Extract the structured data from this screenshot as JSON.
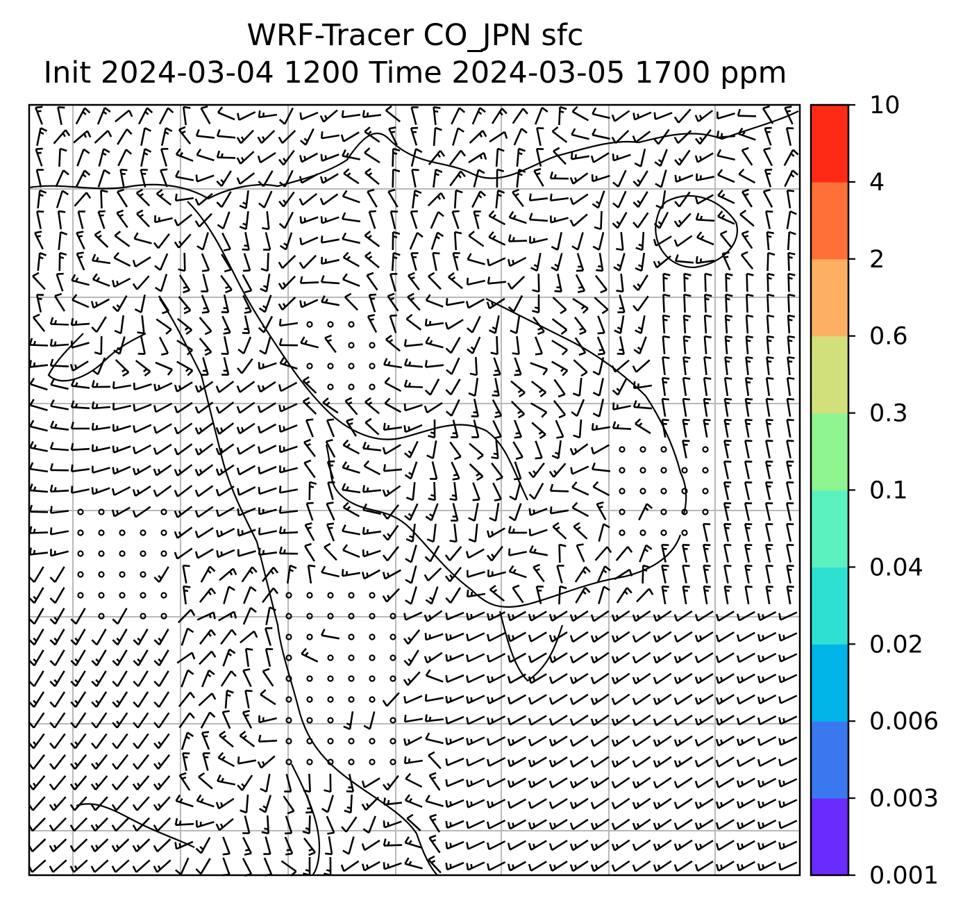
{
  "title": {
    "line1": "WRF-Tracer CO_JPN sfc",
    "line2": "Init 2024-03-04 1200 Time 2024-03-05 1700 ppm"
  },
  "colorbar": {
    "ticks": [
      "0.001",
      "0.003",
      "0.006",
      "0.02",
      "0.04",
      "0.1",
      "0.3",
      "0.6",
      "2",
      "4",
      "10"
    ],
    "colors": [
      "#6a2bff",
      "#3a78f0",
      "#00b4e8",
      "#2ee0d2",
      "#5cf2c0",
      "#8ef590",
      "#d2e07c",
      "#fdb064",
      "#ff7038",
      "#ff2a16"
    ]
  },
  "map": {
    "background": "#ffffff",
    "grid_color": "#b8b8b8",
    "symbol_color": "#000000"
  }
}
